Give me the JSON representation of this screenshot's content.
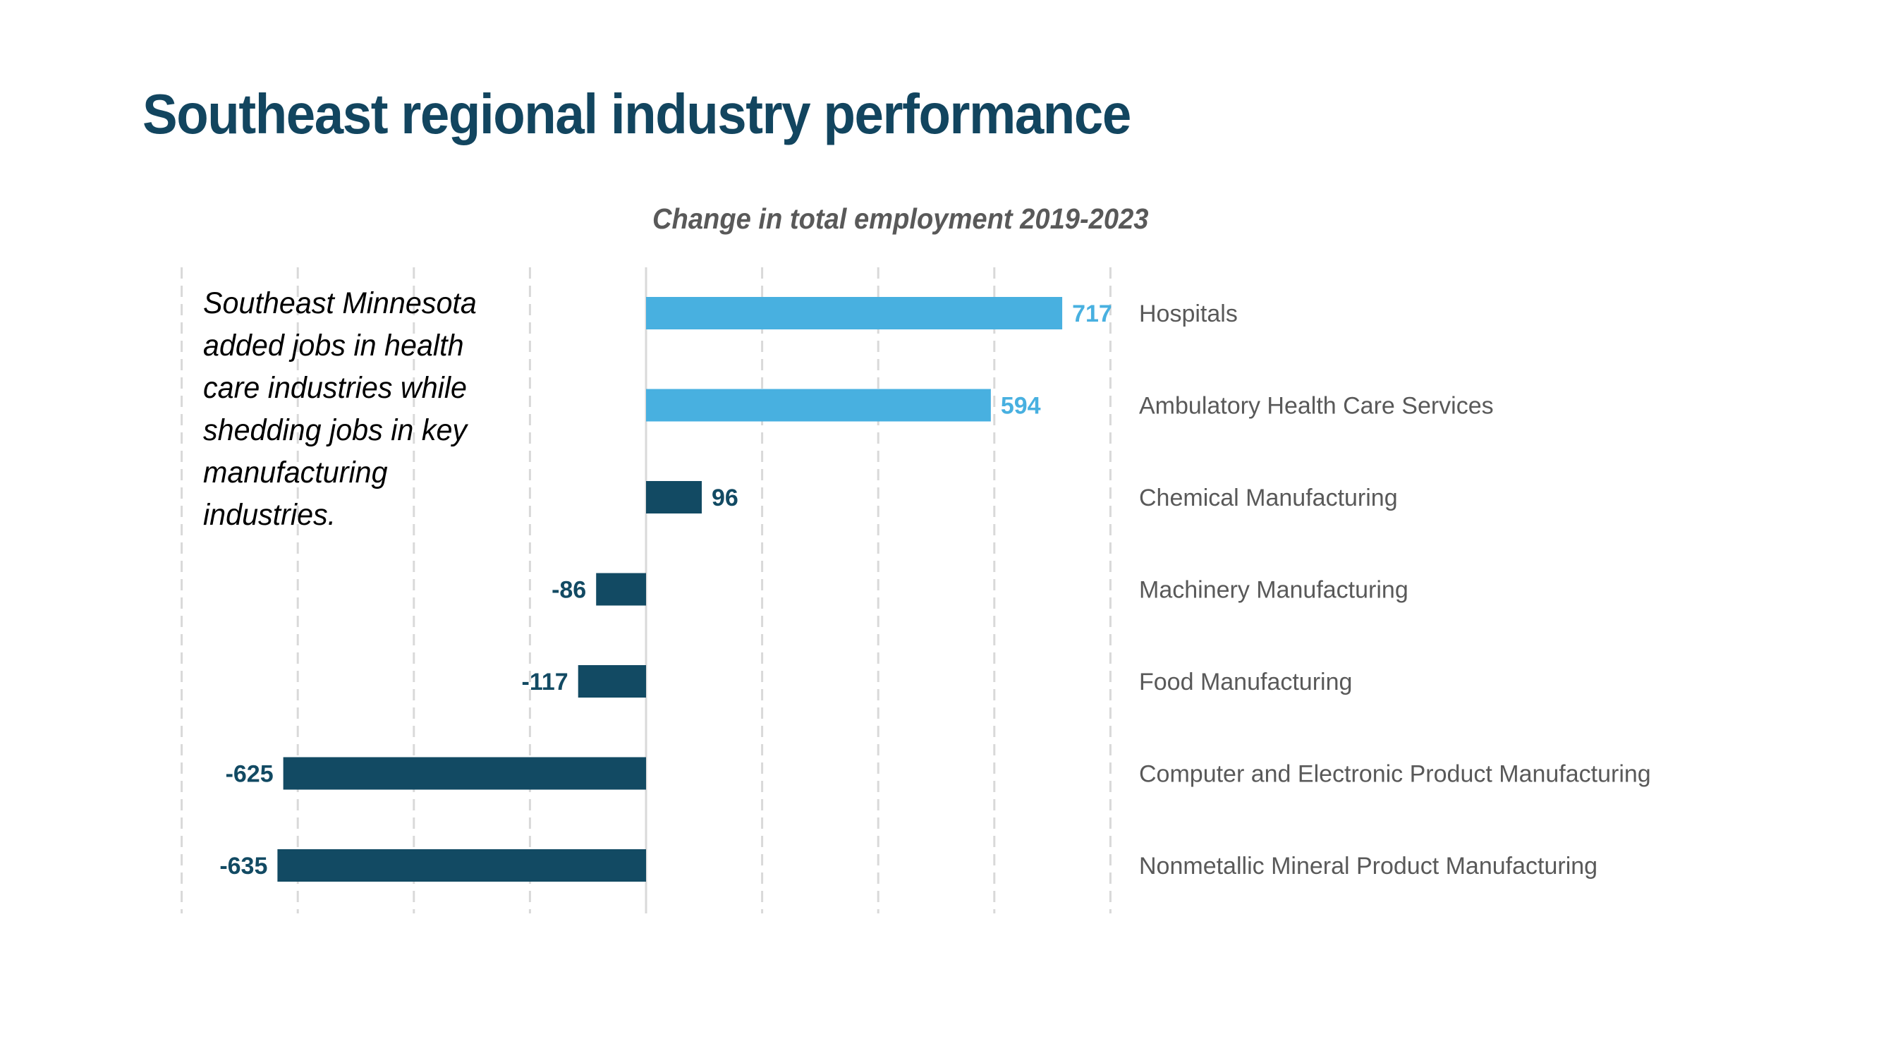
{
  "slide": {
    "title": "Southeast regional industry performance",
    "annotation": "Southeast Minnesota added jobs in health care industries while shedding jobs in key manufacturing industries."
  },
  "colors": {
    "title": "#12455F",
    "health_care_bar": "#48B0E0",
    "manufacturing_bar": "#124A63",
    "category_label": "#595959",
    "gridline": "#D9D9D9",
    "zero_axis": "#D9D9D9"
  },
  "chart_data": {
    "type": "bar",
    "orientation": "horizontal",
    "title": "Change in total employment 2019-2023",
    "xlabel": "",
    "ylabel": "",
    "xlim": [
      -800,
      800
    ],
    "grid_step": 200,
    "grid": true,
    "gridline_style": "dashed",
    "tick_labels_shown": false,
    "category_labels_position": "right",
    "legend": "none",
    "categories": [
      "Hospitals",
      "Ambulatory Health Care Services",
      "Chemical Manufacturing",
      "Machinery Manufacturing",
      "Food Manufacturing",
      "Computer and Electronic Product Manufacturing",
      "Nonmetallic Mineral Product Manufacturing"
    ],
    "values": [
      717,
      594,
      96,
      -86,
      -117,
      -625,
      -635
    ],
    "data_labels": [
      "717",
      "594",
      "96",
      "-86",
      "-117",
      "-625",
      "-635"
    ],
    "groups": [
      "health_care",
      "health_care",
      "manufacturing",
      "manufacturing",
      "manufacturing",
      "manufacturing",
      "manufacturing"
    ]
  }
}
